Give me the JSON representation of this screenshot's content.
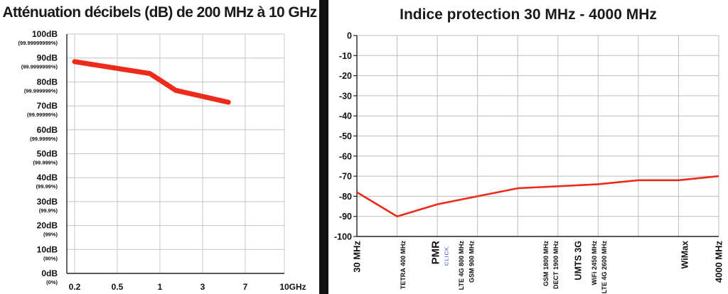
{
  "chart_data": [
    {
      "type": "line",
      "title": "Atténuation décibels (dB) de 200 MHz à 10 GHz",
      "categories": [
        "0.2",
        "0.5",
        "1",
        "3",
        "7",
        "10GHz"
      ],
      "yticks": [
        {
          "value": 100,
          "label": "100dB",
          "sublabel": "(99.99999999%)"
        },
        {
          "value": 90,
          "label": "90dB",
          "sublabel": "(99.9999999%)"
        },
        {
          "value": 80,
          "label": "80dB",
          "sublabel": "(99.999999%)"
        },
        {
          "value": 70,
          "label": "70dB",
          "sublabel": "(99.99999%)"
        },
        {
          "value": 60,
          "label": "60dB",
          "sublabel": "(99.9999%)"
        },
        {
          "value": 50,
          "label": "50dB",
          "sublabel": "(99.999%)"
        },
        {
          "value": 40,
          "label": "40dB",
          "sublabel": "(99.99%)"
        },
        {
          "value": 30,
          "label": "30dB",
          "sublabel": "(99.9%)"
        },
        {
          "value": 20,
          "label": "20dB",
          "sublabel": "(99%)"
        },
        {
          "value": 10,
          "label": "10dB",
          "sublabel": "(90%)"
        },
        {
          "value": 0,
          "label": "0dB",
          "sublabel": "(0%)"
        }
      ],
      "ylim": [
        0,
        100
      ],
      "points": [
        {
          "x": 0.2,
          "y": 88.5
        },
        {
          "x": 0.85,
          "y": 83.5
        },
        {
          "x": 1.5,
          "y": 76.5
        },
        {
          "x": 5,
          "y": 71.5
        }
      ],
      "grid": true,
      "line_color": "#ee2a1b"
    },
    {
      "type": "line",
      "title": "Indice protection 30 MHz - 4000 MHz",
      "ylim": [
        -100,
        0
      ],
      "yticks": [
        0,
        -10,
        -20,
        -30,
        -40,
        -50,
        -60,
        -70,
        -80,
        -90,
        -100
      ],
      "xlim": [
        0,
        9
      ],
      "xlabels": [
        {
          "x": 0,
          "text": "30 MHz"
        },
        {
          "x": 1.15,
          "text": "TETRA 400 MHz"
        },
        {
          "x": 1.95,
          "text": "PMR",
          "subtext": "CLICK"
        },
        {
          "x": 2.6,
          "text": "LTE 4G 800 MHz"
        },
        {
          "x": 2.85,
          "text": "GSM 900 MHz"
        },
        {
          "x": 4.7,
          "text": "GSM 1800 MHz"
        },
        {
          "x": 4.95,
          "text": "DECT 1900 MHz"
        },
        {
          "x": 5.5,
          "text": "UMTS 3G"
        },
        {
          "x": 5.9,
          "text": "WiFi 2450 MHz"
        },
        {
          "x": 6.15,
          "text": "LTE 4G 2600 MHz"
        },
        {
          "x": 8.15,
          "text": "WiMax"
        },
        {
          "x": 9,
          "text": "4000 MHz"
        }
      ],
      "gridlines_x": [
        0,
        1,
        2,
        3,
        4,
        5,
        6,
        7,
        8,
        9
      ],
      "points": [
        {
          "x": 0,
          "y": -78
        },
        {
          "x": 1,
          "y": -90
        },
        {
          "x": 2,
          "y": -84
        },
        {
          "x": 3,
          "y": -80
        },
        {
          "x": 4,
          "y": -76
        },
        {
          "x": 5,
          "y": -75
        },
        {
          "x": 6,
          "y": -74
        },
        {
          "x": 7,
          "y": -72
        },
        {
          "x": 8,
          "y": -72
        },
        {
          "x": 9,
          "y": -70
        },
        {
          "x": 10,
          "y": -70
        }
      ],
      "grid": true,
      "line_color": "#ee2a1b",
      "subtext_color": "#2a3fd1"
    }
  ]
}
